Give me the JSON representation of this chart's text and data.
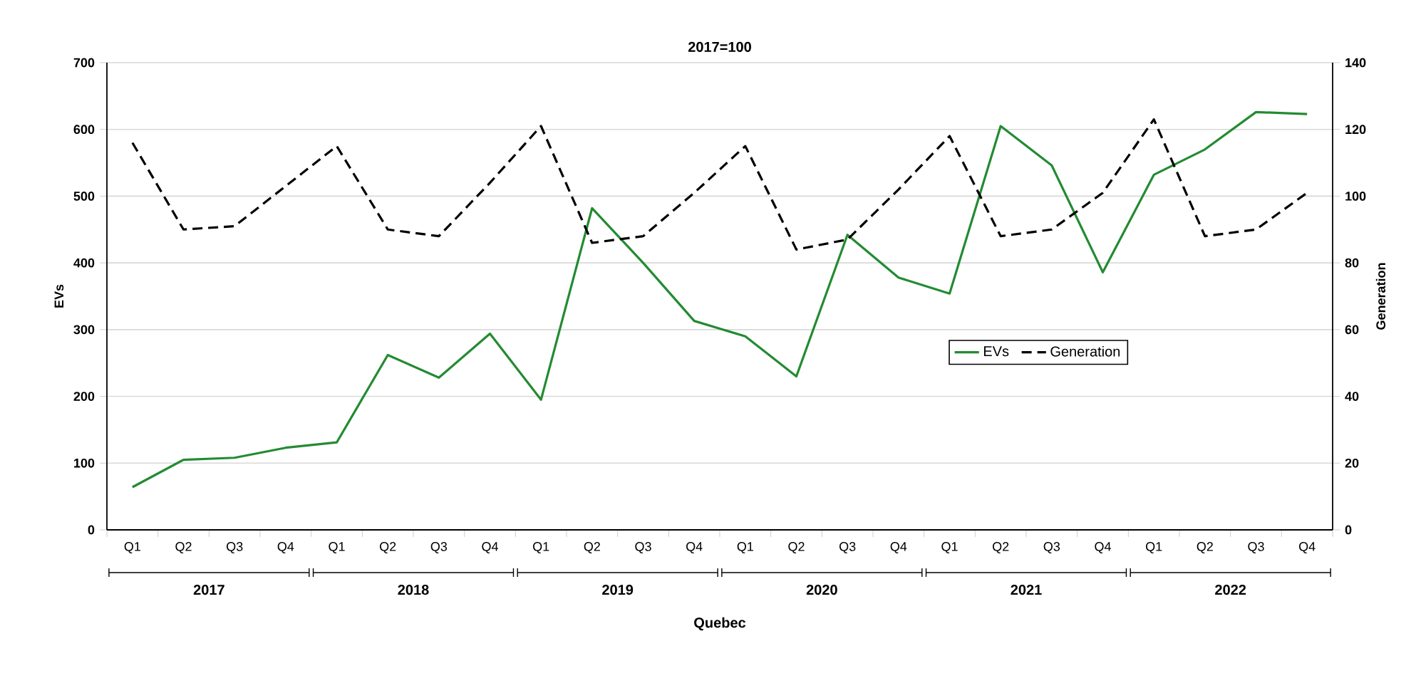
{
  "chart_data": {
    "type": "line",
    "title": "2017=100",
    "xlabel": "Quebec",
    "ylabel": "EVs",
    "y2label": "Generation",
    "categories": [
      "Q1",
      "Q2",
      "Q3",
      "Q4",
      "Q1",
      "Q2",
      "Q3",
      "Q4",
      "Q1",
      "Q2",
      "Q3",
      "Q4",
      "Q1",
      "Q2",
      "Q3",
      "Q4",
      "Q1",
      "Q2",
      "Q3",
      "Q4",
      "Q1",
      "Q2",
      "Q3",
      "Q4"
    ],
    "annotations": [
      "2017",
      "2018",
      "2019",
      "2020",
      "2021",
      "2022"
    ],
    "series": [
      {
        "name": "EVs",
        "color": "#238b32",
        "line_style": "solid",
        "values": [
          64,
          105,
          108,
          123,
          131,
          262,
          228,
          294,
          195,
          482,
          400,
          313,
          290,
          230,
          442,
          378,
          354,
          605,
          546,
          386,
          532,
          570,
          626,
          623
        ]
      },
      {
        "name": "Generation",
        "color": "#000000",
        "line_style": "dashed",
        "axis": "y2",
        "values": [
          116,
          90,
          91,
          103,
          115,
          90,
          88,
          104,
          121,
          86,
          88,
          101,
          115,
          84,
          87,
          102,
          118,
          88,
          90,
          101,
          123,
          88,
          90,
          101
        ]
      }
    ],
    "ylim": [
      0,
      700
    ],
    "yticks": [
      0,
      100,
      200,
      300,
      400,
      500,
      600,
      700
    ],
    "y2lim": [
      0,
      140
    ],
    "y2ticks": [
      0,
      20,
      40,
      60,
      80,
      100,
      120,
      140
    ],
    "grid": "y",
    "legend": "right",
    "marker": "none"
  }
}
